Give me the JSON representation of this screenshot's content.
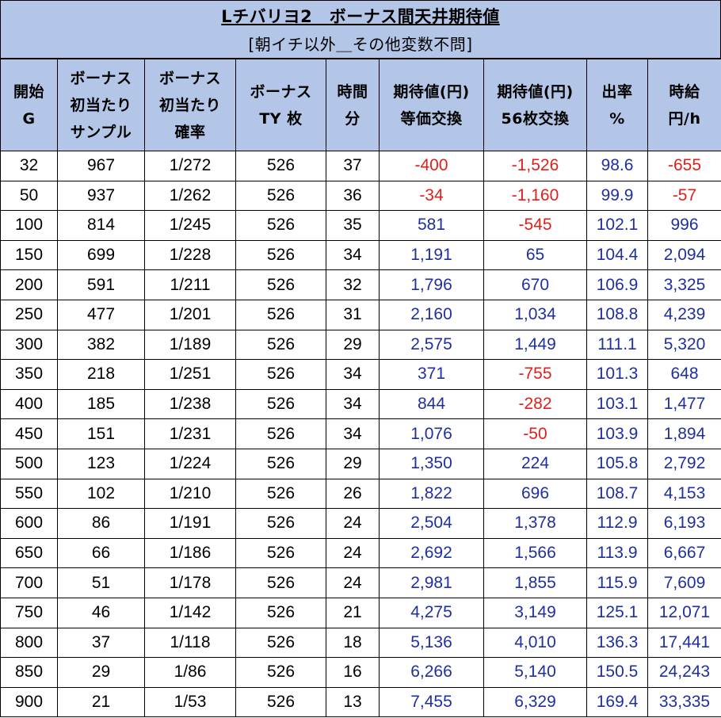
{
  "title": "Lチバリヨ2　ボーナス間天井期待値",
  "subtitle": "[朝イチ以外＿その他変数不問]",
  "columns": [
    [
      "開始",
      "G"
    ],
    [
      "ボーナス",
      "初当たり",
      "サンプル"
    ],
    [
      "ボーナス",
      "初当たり",
      "確率"
    ],
    [
      "ボーナス",
      "TY 枚"
    ],
    [
      "時間",
      "分"
    ],
    [
      "期待値(円)",
      "等価交換"
    ],
    [
      "期待値(円)",
      "56枚交換"
    ],
    [
      "出率",
      "%"
    ],
    [
      "時給",
      "円/h"
    ]
  ],
  "rows": [
    [
      "32",
      "967",
      "1/272",
      "526",
      "37",
      "-400",
      "-1,526",
      "98.6",
      "-655"
    ],
    [
      "50",
      "937",
      "1/262",
      "526",
      "36",
      "-34",
      "-1,160",
      "99.9",
      "-57"
    ],
    [
      "100",
      "814",
      "1/245",
      "526",
      "35",
      "581",
      "-545",
      "102.1",
      "996"
    ],
    [
      "150",
      "699",
      "1/228",
      "526",
      "34",
      "1,191",
      "65",
      "104.4",
      "2,094"
    ],
    [
      "200",
      "591",
      "1/211",
      "526",
      "32",
      "1,796",
      "670",
      "106.9",
      "3,325"
    ],
    [
      "250",
      "477",
      "1/201",
      "526",
      "31",
      "2,160",
      "1,034",
      "108.8",
      "4,239"
    ],
    [
      "300",
      "382",
      "1/189",
      "526",
      "29",
      "2,575",
      "1,449",
      "111.1",
      "5,320"
    ],
    [
      "350",
      "218",
      "1/251",
      "526",
      "34",
      "371",
      "-755",
      "101.3",
      "648"
    ],
    [
      "400",
      "185",
      "1/238",
      "526",
      "34",
      "844",
      "-282",
      "103.1",
      "1,477"
    ],
    [
      "450",
      "151",
      "1/231",
      "526",
      "34",
      "1,076",
      "-50",
      "103.9",
      "1,894"
    ],
    [
      "500",
      "123",
      "1/224",
      "526",
      "29",
      "1,350",
      "224",
      "105.8",
      "2,792"
    ],
    [
      "550",
      "102",
      "1/210",
      "526",
      "26",
      "1,822",
      "696",
      "108.7",
      "4,153"
    ],
    [
      "600",
      "86",
      "1/191",
      "526",
      "24",
      "2,504",
      "1,378",
      "112.9",
      "6,193"
    ],
    [
      "650",
      "66",
      "1/186",
      "526",
      "24",
      "2,692",
      "1,566",
      "113.9",
      "6,667"
    ],
    [
      "700",
      "51",
      "1/178",
      "526",
      "24",
      "2,981",
      "1,855",
      "115.9",
      "7,609"
    ],
    [
      "750",
      "46",
      "1/142",
      "526",
      "21",
      "4,275",
      "3,149",
      "125.1",
      "12,071"
    ],
    [
      "800",
      "37",
      "1/118",
      "526",
      "18",
      "5,136",
      "4,010",
      "136.3",
      "17,441"
    ],
    [
      "850",
      "29",
      "1/86",
      "526",
      "16",
      "6,266",
      "5,140",
      "150.5",
      "24,243"
    ],
    [
      "900",
      "21",
      "1/53",
      "526",
      "13",
      "7,455",
      "6,329",
      "169.4",
      "33,335"
    ]
  ],
  "colors": {
    "header_bg": "#b4c6e7",
    "negative": "#e0201b",
    "positive": "#1f2fa0"
  }
}
